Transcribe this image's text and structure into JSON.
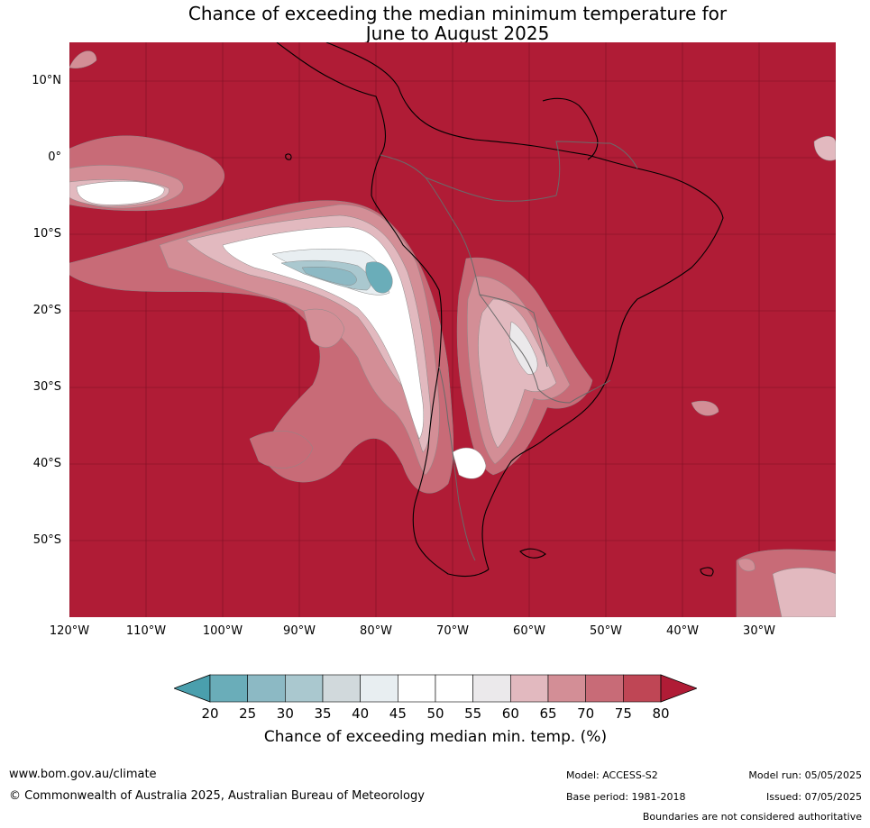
{
  "title": {
    "line1": "Chance of exceeding the median minimum temperature for",
    "line2": "June to August 2025"
  },
  "map": {
    "background_color": "#b01c36",
    "lat_labels": [
      "10°N",
      "0°",
      "10°S",
      "20°S",
      "30°S",
      "40°S",
      "50°S"
    ],
    "lon_labels": [
      "120°W",
      "110°W",
      "100°W",
      "90°W",
      "80°W",
      "70°W",
      "60°W",
      "50°W",
      "40°W",
      "30°W"
    ]
  },
  "colorbar": {
    "ticks": [
      "20",
      "25",
      "30",
      "35",
      "40",
      "45",
      "50",
      "55",
      "60",
      "65",
      "70",
      "75",
      "80"
    ],
    "colors": [
      "#6aadb9",
      "#8cb9c4",
      "#aac8cf",
      "#d1d9dc",
      "#e8eef1",
      "#ffffff",
      "#ffffff",
      "#ebe9eb",
      "#e2b9bf",
      "#d38e96",
      "#c86b77",
      "#bf4655"
    ],
    "under_color": "#4a9fad",
    "over_color": "#b01c36",
    "label": "Chance of exceeding median min. temp. (%)"
  },
  "footer": {
    "url": "www.bom.gov.au/climate",
    "copyright": "© Commonwealth of Australia 2025, Australian Bureau of Meteorology",
    "model": "Model: ACCESS-S2",
    "base_period": "Base period: 1981-2018",
    "model_run": "Model run: 05/05/2025",
    "issued": "Issued: 07/05/2025",
    "disclaimer": "Boundaries are not considered authoritative"
  }
}
